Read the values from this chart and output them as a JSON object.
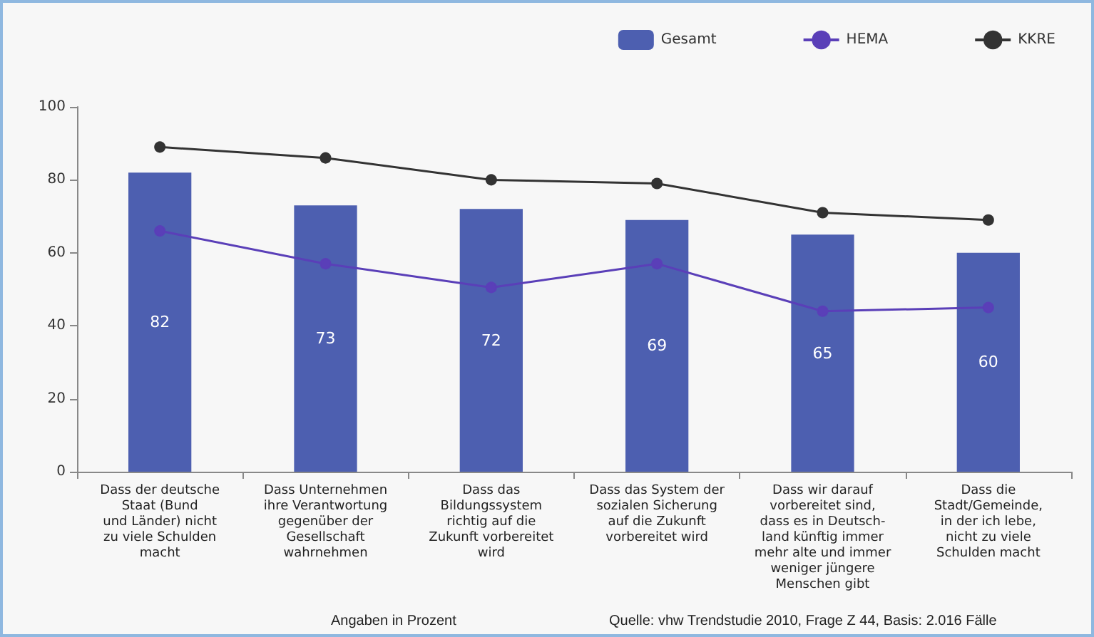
{
  "chart_data": {
    "type": "bar",
    "categories": [
      "Dass der deutsche\nStaat (Bund\nund Länder) nicht\nzu viele Schulden\nmacht",
      "Dass Unternehmen\nihre Verantwortung\ngegenüber der\nGesellschaft\nwahrnehmen",
      "Dass das\nBildungssystem\nrichtig auf die\nZukunft vorbereitet\nwird",
      "Dass das System der\nsozialen Sicherung\nauf die Zukunft\nvorbereitet wird",
      "Dass wir darauf\nvorbereitet sind,\ndass es in Deutsch-\nland künftig immer\nmehr alte und immer\nweniger jüngere\nMenschen gibt",
      "Dass die\nStadt/Gemeinde,\nin der ich lebe,\nnicht zu viele\nSchulden macht"
    ],
    "series": [
      {
        "name": "Gesamt",
        "color": "#4d5fb0",
        "values": [
          82,
          73,
          72,
          69,
          65,
          60
        ],
        "value_labels": [
          "82",
          "73",
          "72",
          "69",
          "65",
          "60"
        ]
      },
      {
        "name": "HEMA",
        "type": "line",
        "color": "#5a3fb8",
        "marker": "circle",
        "values": [
          66,
          57,
          50.5,
          57,
          44,
          45
        ]
      },
      {
        "name": "KKRE",
        "type": "line",
        "color": "#333333",
        "marker": "circle",
        "values": [
          89,
          86,
          80,
          79,
          71,
          69
        ]
      }
    ],
    "ylim": [
      0,
      100
    ],
    "yticks": [
      0,
      20,
      40,
      60,
      80,
      100
    ],
    "grid": false,
    "legend": "top right",
    "annotations": [
      "Angaben in Prozent",
      "Quelle: vhw Trendstudie 2010, Frage Z 44, Basis: 2.016 Fälle"
    ]
  }
}
